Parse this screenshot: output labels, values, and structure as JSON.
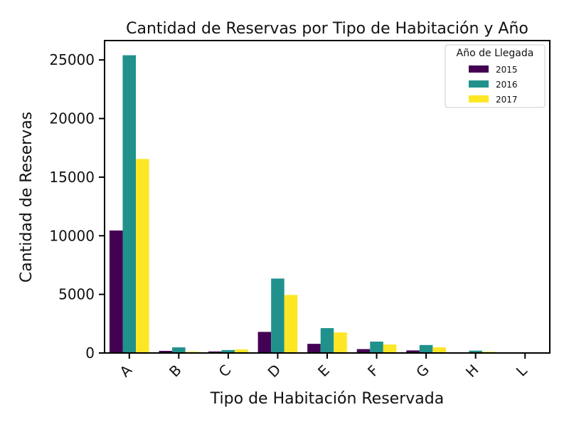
{
  "chart_data": {
    "type": "bar",
    "title": "Cantidad de Reservas por Tipo de Habitación y Año",
    "xlabel": "Tipo de Habitación Reservada",
    "ylabel": "Cantidad de Reservas",
    "categories": [
      "A",
      "B",
      "C",
      "D",
      "E",
      "F",
      "G",
      "H",
      "L"
    ],
    "series": [
      {
        "name": "2015",
        "color": "#440154",
        "values": [
          10450,
          180,
          130,
          1800,
          780,
          330,
          220,
          60,
          0
        ]
      },
      {
        "name": "2016",
        "color": "#21918c",
        "values": [
          25400,
          480,
          250,
          6350,
          2120,
          970,
          680,
          200,
          6
        ]
      },
      {
        "name": "2017",
        "color": "#fde725",
        "values": [
          16550,
          120,
          300,
          4950,
          1750,
          720,
          480,
          110,
          0
        ]
      }
    ],
    "yticks": [
      0,
      5000,
      10000,
      15000,
      20000,
      25000
    ],
    "ylim": [
      0,
      26650
    ],
    "legend": {
      "title": "Año de Llegada",
      "position": "top-right"
    },
    "grid": false
  }
}
